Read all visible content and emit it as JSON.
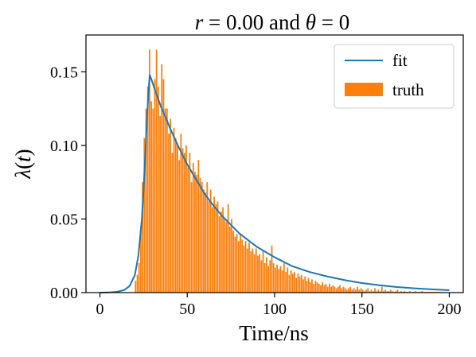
{
  "chart_data": {
    "type": "bar",
    "title_parts": {
      "r_symbol": "r",
      "r_value": " = 0.00 and ",
      "theta_symbol": "θ",
      "theta_value": " = 0"
    },
    "xlabel": "Time/ns",
    "ylabel_parts": {
      "lambda": "λ",
      "open": "(",
      "t": "t",
      "close": ")"
    },
    "xlim": [
      -8,
      208
    ],
    "ylim": [
      0,
      0.175
    ],
    "x_ticks": [
      0,
      50,
      100,
      150,
      200
    ],
    "x_tick_labels": [
      "0",
      "50",
      "100",
      "150",
      "200"
    ],
    "y_ticks": [
      0.0,
      0.05,
      0.1,
      0.15
    ],
    "y_tick_labels": [
      "0.00",
      "0.05",
      "0.10",
      "0.15"
    ],
    "legend_position": "top-right",
    "colors": {
      "fit": "#1f77b4",
      "truth": "#ff7f0e"
    },
    "series": [
      {
        "name": "fit",
        "kind": "line",
        "x": [
          0,
          5,
          10,
          14,
          17,
          20,
          22,
          24,
          25,
          26,
          27,
          28,
          28.5,
          30,
          32,
          35,
          38,
          40,
          45,
          50,
          55,
          60,
          65,
          70,
          75,
          80,
          90,
          100,
          110,
          120,
          130,
          140,
          150,
          160,
          170,
          180,
          190,
          200
        ],
        "y": [
          0,
          0.0001,
          0.0006,
          0.0018,
          0.0045,
          0.012,
          0.025,
          0.05,
          0.07,
          0.095,
          0.12,
          0.14,
          0.148,
          0.143,
          0.136,
          0.126,
          0.118,
          0.112,
          0.099,
          0.087,
          0.077,
          0.067,
          0.059,
          0.052,
          0.046,
          0.04,
          0.031,
          0.024,
          0.018,
          0.014,
          0.011,
          0.0085,
          0.0065,
          0.005,
          0.0038,
          0.0029,
          0.0022,
          0.0016
        ]
      },
      {
        "name": "truth",
        "kind": "bar",
        "bin_start": 20,
        "bin_width": 1,
        "values": [
          0.008,
          0.012,
          0.02,
          0.045,
          0.075,
          0.105,
          0.125,
          0.14,
          0.165,
          0.13,
          0.125,
          0.145,
          0.165,
          0.14,
          0.12,
          0.155,
          0.145,
          0.125,
          0.125,
          0.108,
          0.118,
          0.095,
          0.112,
          0.105,
          0.1,
          0.09,
          0.108,
          0.098,
          0.095,
          0.1,
          0.085,
          0.095,
          0.075,
          0.088,
          0.082,
          0.08,
          0.09,
          0.078,
          0.075,
          0.07,
          0.068,
          0.075,
          0.062,
          0.07,
          0.058,
          0.065,
          0.06,
          0.062,
          0.052,
          0.055,
          0.058,
          0.05,
          0.048,
          0.06,
          0.045,
          0.05,
          0.042,
          0.038,
          0.04,
          0.035,
          0.04,
          0.036,
          0.032,
          0.035,
          0.03,
          0.034,
          0.028,
          0.03,
          0.026,
          0.03,
          0.025,
          0.026,
          0.022,
          0.028,
          0.02,
          0.024,
          0.018,
          0.022,
          0.032,
          0.02,
          0.017,
          0.019,
          0.016,
          0.018,
          0.015,
          0.02,
          0.014,
          0.017,
          0.012,
          0.015,
          0.013,
          0.014,
          0.01,
          0.013,
          0.011,
          0.012,
          0.009,
          0.011,
          0.008,
          0.01,
          0.007,
          0.009,
          0.006,
          0.008,
          0.007,
          0.006,
          0.005,
          0.007,
          0.005,
          0.006,
          0.004,
          0.006,
          0.004,
          0.005,
          0.004,
          0.003,
          0.004,
          0.005,
          0.003,
          0.004,
          0.003,
          0.002,
          0.003,
          0.004,
          0.002,
          0.003,
          0.002,
          0.004,
          0.002,
          0.003,
          0.002,
          0.001,
          0.002,
          0.003,
          0.001,
          0.002,
          0.001,
          0.003,
          0.001,
          0.002,
          0.001,
          0.004,
          0.001,
          0.002,
          0.001,
          0.001,
          0.002,
          0.001,
          0.0005,
          0.001,
          0.002,
          0.0005,
          0.001,
          0.0005,
          0.001,
          0.0005,
          0.0005,
          0.001,
          0.0005,
          0.0005,
          0.001,
          0.0005,
          0.0005,
          0.0005,
          0.001,
          0.0005,
          0.0005,
          0.0005,
          0.0005,
          0.0005,
          0.0005,
          0.0005,
          0.0005,
          0.0005,
          0.0005,
          0.0005
        ]
      }
    ],
    "legend": {
      "fit_label": "fit",
      "truth_label": "truth"
    }
  }
}
